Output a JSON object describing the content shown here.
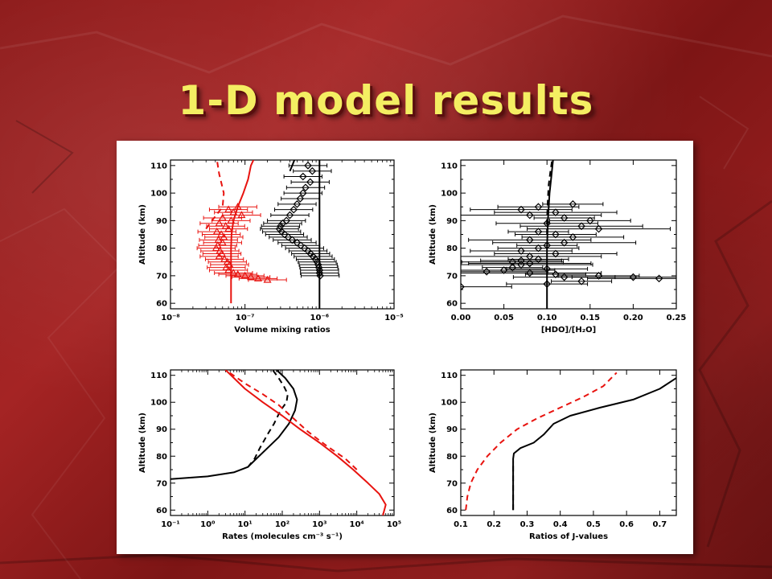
{
  "slide": {
    "title": "1-D model results"
  },
  "colors": {
    "red": "#e8130f",
    "black": "#000000",
    "title": "#f4ee62"
  },
  "chart_data": [
    {
      "id": "vmr",
      "type": "scatter",
      "xscale": "log",
      "xlim": [
        1e-08,
        1e-05
      ],
      "ylim": [
        58,
        112
      ],
      "xticks": [
        1e-08,
        1e-07,
        1e-06,
        1e-05
      ],
      "xtick_labels": [
        "10⁻⁸",
        "10⁻⁷",
        "10⁻⁶",
        "10⁻⁵"
      ],
      "yticks": [
        60,
        70,
        80,
        90,
        100,
        110
      ],
      "xlabel": "Volume mixing ratios",
      "ylabel": "Altitude (km)",
      "lines": [
        {
          "color": "red",
          "dash": "solid",
          "x": [
            6.5e-08,
            6.5e-08,
            6.5e-08,
            6.6e-08,
            7e-08,
            8e-08,
            9.5e-08,
            1.1e-07,
            1.2e-07,
            1.3e-07
          ],
          "y": [
            60,
            70,
            80,
            85,
            90,
            95,
            100,
            105,
            110,
            112
          ]
        },
        {
          "color": "red",
          "dash": "dashed",
          "x": [
            3e-08,
            3.6e-08,
            5e-08,
            5.2e-08,
            4.5e-08,
            4.2e-08
          ],
          "y": [
            87,
            90,
            95,
            100,
            107,
            112
          ]
        },
        {
          "color": "black",
          "dash": "solid",
          "x": [
            1e-06,
            1e-06,
            1e-06,
            1e-06,
            1e-06,
            1e-06
          ],
          "y": [
            58,
            70,
            80,
            90,
            100,
            112
          ]
        },
        {
          "color": "black",
          "dash": "solid",
          "x": [
            4e-07,
            4.3e-07,
            4.6e-07
          ],
          "y": [
            108,
            110,
            112
          ]
        }
      ],
      "points": [
        {
          "color": "red",
          "marker": "triangle",
          "x": [
            8e-08,
            6e-08,
            7e-08,
            9e-08,
            5e-08,
            6.5e-08,
            4.5e-08,
            5.5e-08,
            6e-08,
            4.2e-08,
            4.8e-08,
            5.2e-08,
            4.4e-08,
            5e-08,
            4.3e-08,
            4.1e-08,
            4.6e-08,
            4.9e-08,
            4.5e-08,
            5.3e-08,
            5.8e-08,
            6.2e-08,
            5.6e-08,
            6e-08,
            7e-08,
            8e-08,
            1e-07,
            1.2e-07,
            1.5e-07,
            2e-07
          ],
          "y": [
            95,
            94,
            93,
            92,
            91,
            90,
            89,
            88,
            87,
            86,
            85,
            84,
            83,
            82,
            81,
            80,
            79,
            78,
            77,
            76,
            75,
            74,
            73,
            72,
            71,
            70.5,
            70,
            69.5,
            69,
            68.5
          ]
        },
        {
          "color": "black",
          "marker": "diamond",
          "x": [
            7e-07,
            8e-07,
            6e-07,
            7.5e-07,
            6.5e-07,
            6e-07,
            5.5e-07,
            5e-07,
            4.5e-07,
            4e-07,
            3.6e-07,
            3.2e-07,
            3e-07,
            2.9e-07,
            3.1e-07,
            3.4e-07,
            3.8e-07,
            4.3e-07,
            5e-07,
            5.6e-07,
            6.3e-07,
            7e-07,
            7.6e-07,
            8.2e-07,
            8.8e-07,
            9.3e-07,
            9.6e-07,
            9.8e-07,
            1e-06,
            1e-06,
            1.02e-06
          ],
          "y": [
            110,
            108,
            106,
            104,
            102,
            100,
            98,
            96,
            94,
            92,
            90,
            89,
            88,
            87,
            86,
            85,
            84,
            83,
            82,
            81,
            80,
            79,
            78,
            77,
            76,
            75,
            74,
            73,
            72,
            71,
            70
          ]
        }
      ]
    },
    {
      "id": "hdo",
      "type": "scatter",
      "xscale": "linear",
      "xlim": [
        0,
        0.25
      ],
      "ylim": [
        58,
        112
      ],
      "xticks": [
        0,
        0.05,
        0.1,
        0.15,
        0.2,
        0.25
      ],
      "xtick_labels": [
        "0.00",
        "0.05",
        "0.10",
        "0.15",
        "0.20",
        "0.25"
      ],
      "yticks": [
        60,
        70,
        80,
        90,
        100,
        110
      ],
      "xlabel": "[HDO]/[H₂O]",
      "ylabel": "Altitude (km)",
      "lines": [
        {
          "color": "black",
          "dash": "solid",
          "x": [
            0.1,
            0.1,
            0.1,
            0.101,
            0.103,
            0.105,
            0.107
          ],
          "y": [
            58,
            70,
            80,
            90,
            100,
            106,
            112
          ]
        },
        {
          "color": "black",
          "dash": "dashed",
          "x": [
            0.1,
            0.1,
            0.101,
            0.102,
            0.104,
            0.106
          ],
          "y": [
            85,
            90,
            98,
            103,
            108,
            112
          ]
        }
      ],
      "points": [
        {
          "color": "black",
          "marker": "diamond",
          "x": [
            0.13,
            0.09,
            0.07,
            0.11,
            0.08,
            0.12,
            0.15,
            0.1,
            0.14,
            0.16,
            0.09,
            0.11,
            0.13,
            0.08,
            0.12,
            0.1,
            0.09,
            0.07,
            0.11,
            0.08,
            0.09,
            0.07,
            0.06,
            0.08,
            0.07,
            0.06,
            0.1,
            0.05,
            0.03,
            0.08,
            0.11,
            0.16,
            0.12,
            0.2,
            0.23,
            0.14,
            0.1,
            0.0
          ],
          "y": [
            96,
            95,
            94,
            93,
            92,
            91,
            90,
            89,
            88,
            87,
            86,
            85,
            84,
            83,
            82,
            81,
            80,
            79,
            78,
            77,
            76,
            75.5,
            75,
            74.5,
            74,
            73,
            72.5,
            72,
            71.5,
            71,
            70.5,
            70,
            69.5,
            69.5,
            69,
            68,
            67,
            66
          ]
        }
      ]
    },
    {
      "id": "rates",
      "type": "line",
      "xscale": "log",
      "xlim": [
        0.1,
        100000
      ],
      "ylim": [
        58,
        112
      ],
      "xticks": [
        0.1,
        1,
        10,
        100,
        1000,
        10000,
        100000
      ],
      "xtick_labels": [
        "10⁻¹",
        "10⁰",
        "10¹",
        "10²",
        "10³",
        "10⁴",
        "10⁵"
      ],
      "yticks": [
        60,
        70,
        80,
        90,
        100,
        110
      ],
      "xlabel": "Rates (molecules cm⁻³ s⁻¹)",
      "ylabel": "Altitude (km)",
      "series": [
        {
          "color": "black",
          "dash": "solid",
          "x": [
            0.1,
            1,
            5,
            12,
            20,
            40,
            80,
            150,
            220,
            250,
            200,
            120,
            70
          ],
          "y": [
            71.5,
            72.5,
            74,
            76,
            79,
            83,
            87,
            92,
            97,
            101,
            105,
            109,
            112
          ]
        },
        {
          "color": "black",
          "dash": "dashed",
          "x": [
            12,
            18,
            25,
            40,
            60,
            90,
            130,
            140,
            110,
            80,
            55
          ],
          "y": [
            76,
            79,
            83,
            88,
            92,
            97,
            100,
            103,
            106,
            109,
            112
          ]
        },
        {
          "color": "red",
          "dash": "solid",
          "x": [
            50000,
            60000,
            40000,
            20000,
            8000,
            3000,
            1000,
            300,
            100,
            30,
            10,
            3
          ],
          "y": [
            58,
            62,
            66,
            70,
            75,
            80,
            85,
            90,
            95,
            100,
            105,
            112
          ]
        },
        {
          "color": "red",
          "dash": "dashed",
          "x": [
            10000,
            5000,
            1500,
            500,
            200,
            80,
            30,
            10,
            3
          ],
          "y": [
            75,
            79,
            84,
            89,
            94,
            99,
            103,
            107,
            112
          ]
        }
      ]
    },
    {
      "id": "jratio",
      "type": "line",
      "xscale": "linear",
      "xlim": [
        0.1,
        0.75
      ],
      "ylim": [
        58,
        112
      ],
      "xticks": [
        0.1,
        0.2,
        0.3,
        0.4,
        0.5,
        0.6,
        0.7
      ],
      "xtick_labels": [
        "0.1",
        "0.2",
        "0.3",
        "0.4",
        "0.5",
        "0.6",
        "0.7"
      ],
      "yticks": [
        60,
        70,
        80,
        90,
        100,
        110
      ],
      "xlabel": "Ratios of J-values",
      "ylabel": "Altitude (km)",
      "series": [
        {
          "color": "black",
          "dash": "solid",
          "x": [
            0.258,
            0.258,
            0.258,
            0.26,
            0.28,
            0.32,
            0.35,
            0.38,
            0.43,
            0.52,
            0.62,
            0.7,
            0.75
          ],
          "y": [
            60,
            70,
            79,
            81,
            83,
            85,
            88,
            92,
            95,
            98,
            101,
            105,
            109
          ]
        },
        {
          "color": "black",
          "dash": "dashed",
          "x": [
            0.258,
            0.258,
            0.258,
            0.258
          ],
          "y": [
            60,
            65,
            70,
            78
          ]
        },
        {
          "color": "red",
          "dash": "dashed",
          "x": [
            0.115,
            0.12,
            0.13,
            0.15,
            0.18,
            0.22,
            0.27,
            0.33,
            0.4,
            0.47,
            0.53,
            0.57
          ],
          "y": [
            60,
            65,
            70,
            75,
            80,
            85,
            90,
            94,
            98,
            102,
            106,
            111
          ]
        }
      ]
    }
  ]
}
